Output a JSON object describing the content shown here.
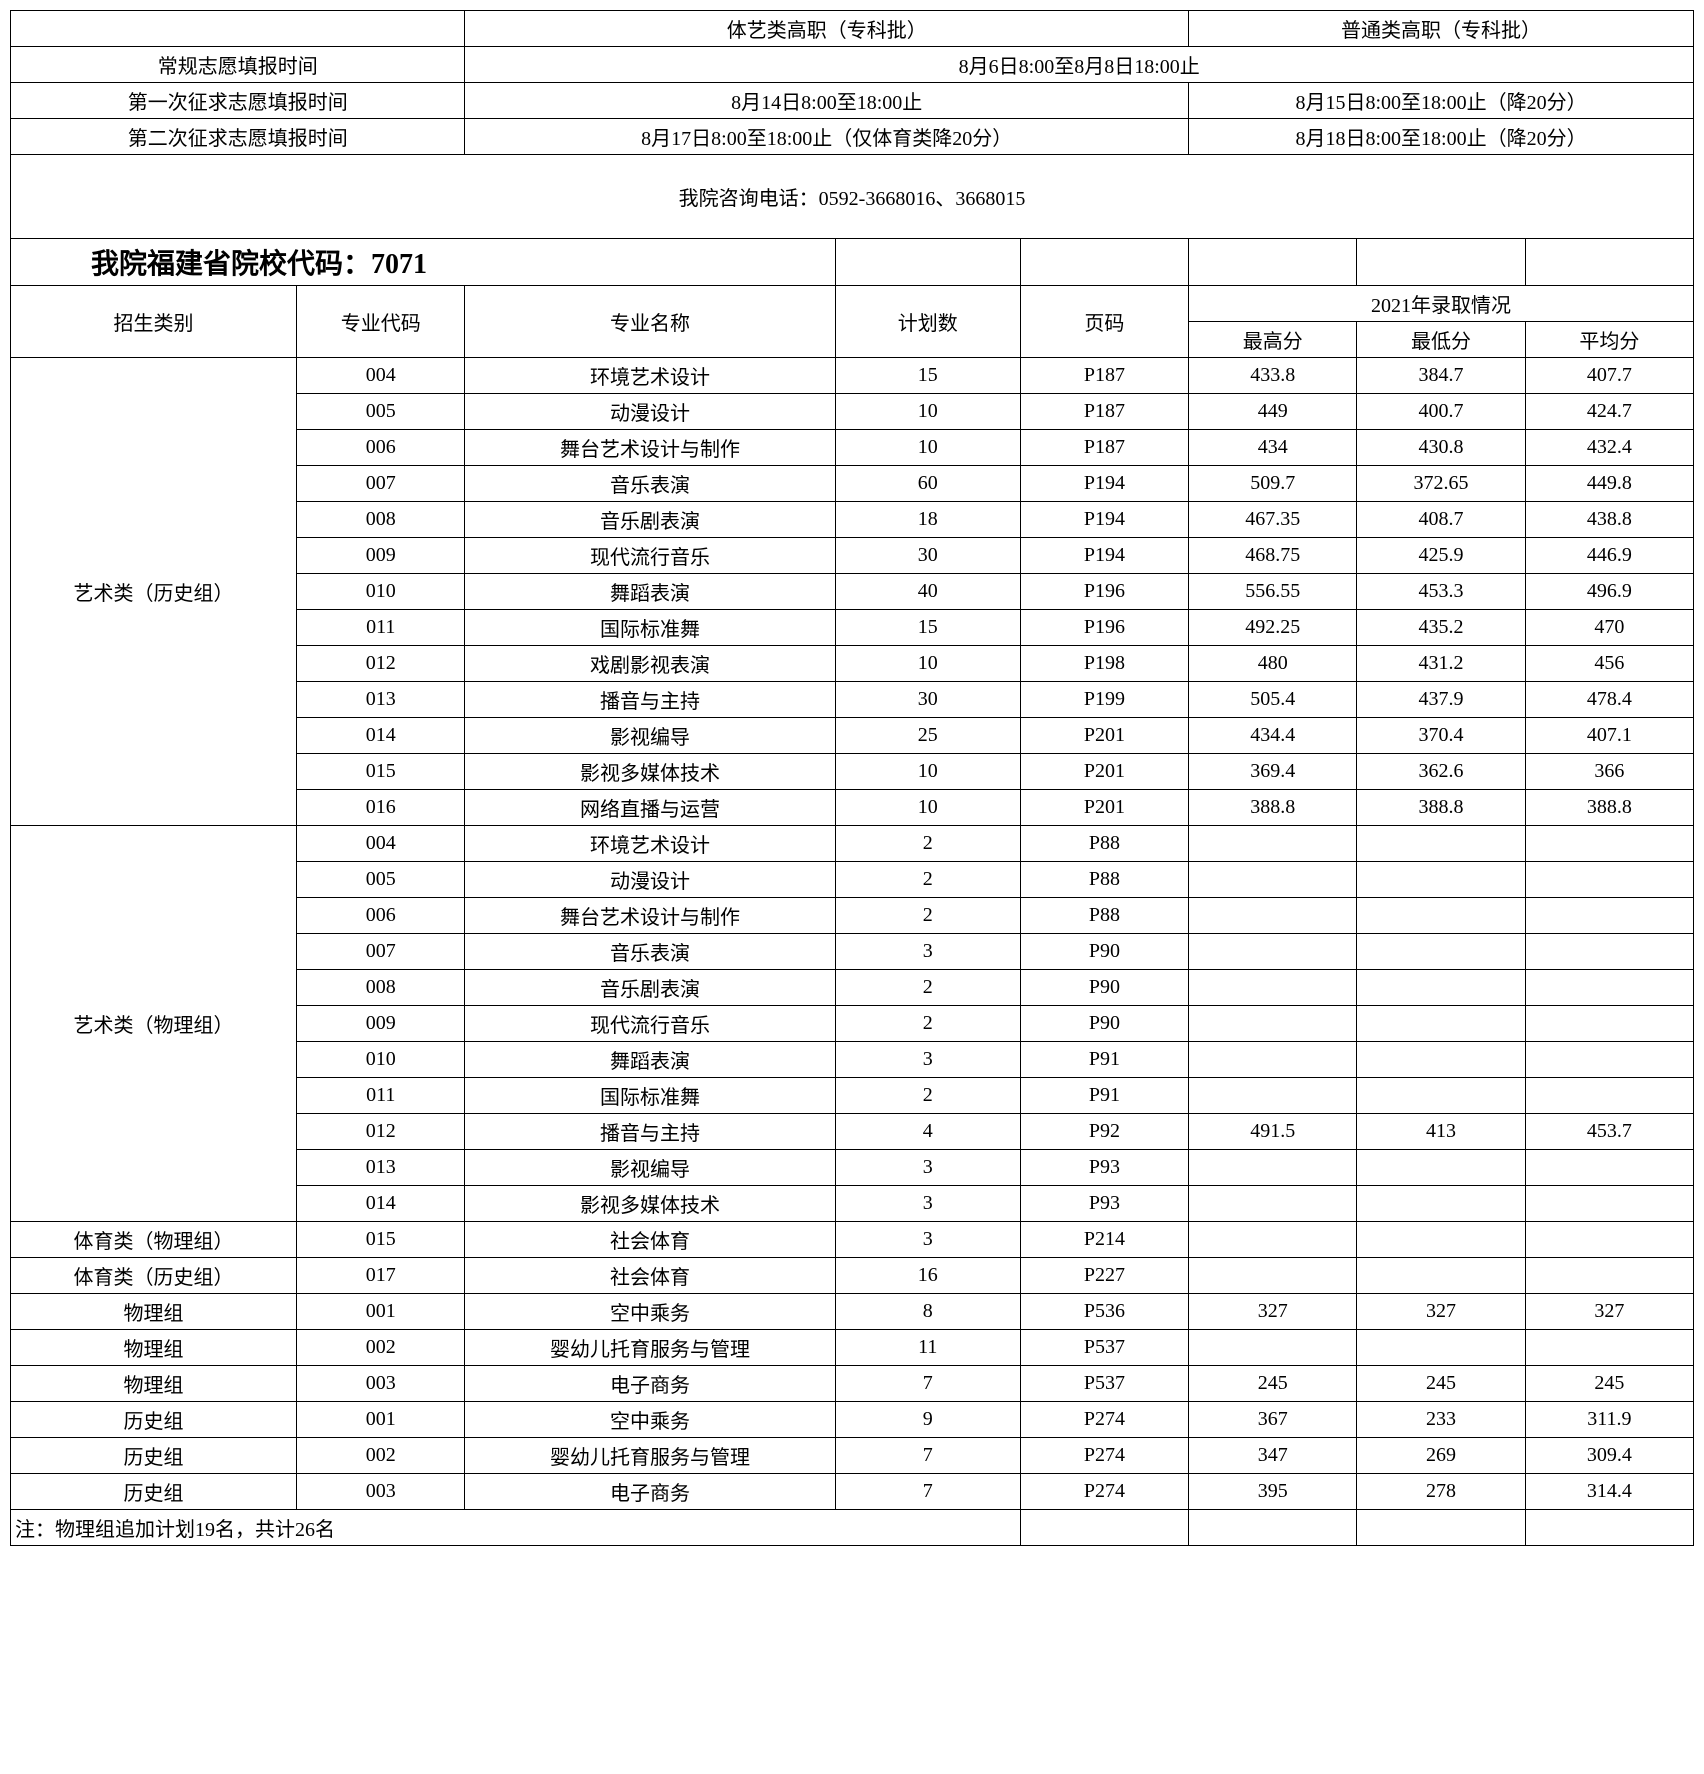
{
  "schedule": {
    "header_blank": "",
    "col1_header": "体艺类高职（专科批）",
    "col2_header": "普通类高职（专科批）",
    "rows": [
      {
        "label": "常规志愿填报时间",
        "merged": "8月6日8:00至8月8日18:00止"
      },
      {
        "label": "第一次征求志愿填报时间",
        "c1": "8月14日8:00至18:00止",
        "c2": "8月15日8:00至18:00止（降20分）"
      },
      {
        "label": "第二次征求志愿填报时间",
        "c1": "8月17日8:00至18:00止（仅体育类降20分）",
        "c2": "8月18日8:00至18:00止（降20分）"
      }
    ]
  },
  "contact": "我院咨询电话：0592-3668016、3668015",
  "school_code": "我院福建省院校代码：7071",
  "main_headers": {
    "category": "招生类别",
    "major_code": "专业代码",
    "major_name": "专业名称",
    "plan": "计划数",
    "page": "页码",
    "year_header": "2021年录取情况",
    "high": "最高分",
    "low": "最低分",
    "avg": "平均分"
  },
  "groups": [
    {
      "category": "艺术类（历史组）",
      "rows": [
        {
          "code": "004",
          "name": "环境艺术设计",
          "plan": "15",
          "page": "P187",
          "high": "433.8",
          "low": "384.7",
          "avg": "407.7"
        },
        {
          "code": "005",
          "name": "动漫设计",
          "plan": "10",
          "page": "P187",
          "high": "449",
          "low": "400.7",
          "avg": "424.7"
        },
        {
          "code": "006",
          "name": "舞台艺术设计与制作",
          "plan": "10",
          "page": "P187",
          "high": "434",
          "low": "430.8",
          "avg": "432.4"
        },
        {
          "code": "007",
          "name": "音乐表演",
          "plan": "60",
          "page": "P194",
          "high": "509.7",
          "low": "372.65",
          "avg": "449.8"
        },
        {
          "code": "008",
          "name": "音乐剧表演",
          "plan": "18",
          "page": "P194",
          "high": "467.35",
          "low": "408.7",
          "avg": "438.8"
        },
        {
          "code": "009",
          "name": "现代流行音乐",
          "plan": "30",
          "page": "P194",
          "high": "468.75",
          "low": "425.9",
          "avg": "446.9"
        },
        {
          "code": "010",
          "name": "舞蹈表演",
          "plan": "40",
          "page": "P196",
          "high": "556.55",
          "low": "453.3",
          "avg": "496.9"
        },
        {
          "code": "011",
          "name": "国际标准舞",
          "plan": "15",
          "page": "P196",
          "high": "492.25",
          "low": "435.2",
          "avg": "470"
        },
        {
          "code": "012",
          "name": "戏剧影视表演",
          "plan": "10",
          "page": "P198",
          "high": "480",
          "low": "431.2",
          "avg": "456"
        },
        {
          "code": "013",
          "name": "播音与主持",
          "plan": "30",
          "page": "P199",
          "high": "505.4",
          "low": "437.9",
          "avg": "478.4"
        },
        {
          "code": "014",
          "name": "影视编导",
          "plan": "25",
          "page": "P201",
          "high": "434.4",
          "low": "370.4",
          "avg": "407.1"
        },
        {
          "code": "015",
          "name": "影视多媒体技术",
          "plan": "10",
          "page": "P201",
          "high": "369.4",
          "low": "362.6",
          "avg": "366"
        },
        {
          "code": "016",
          "name": "网络直播与运营",
          "plan": "10",
          "page": "P201",
          "high": "388.8",
          "low": "388.8",
          "avg": "388.8"
        }
      ]
    },
    {
      "category": "艺术类（物理组）",
      "rows": [
        {
          "code": "004",
          "name": "环境艺术设计",
          "plan": "2",
          "page": "P88",
          "high": "",
          "low": "",
          "avg": ""
        },
        {
          "code": "005",
          "name": "动漫设计",
          "plan": "2",
          "page": "P88",
          "high": "",
          "low": "",
          "avg": ""
        },
        {
          "code": "006",
          "name": "舞台艺术设计与制作",
          "plan": "2",
          "page": "P88",
          "high": "",
          "low": "",
          "avg": ""
        },
        {
          "code": "007",
          "name": "音乐表演",
          "plan": "3",
          "page": "P90",
          "high": "",
          "low": "",
          "avg": ""
        },
        {
          "code": "008",
          "name": "音乐剧表演",
          "plan": "2",
          "page": "P90",
          "high": "",
          "low": "",
          "avg": ""
        },
        {
          "code": "009",
          "name": "现代流行音乐",
          "plan": "2",
          "page": "P90",
          "high": "",
          "low": "",
          "avg": ""
        },
        {
          "code": "010",
          "name": "舞蹈表演",
          "plan": "3",
          "page": "P91",
          "high": "",
          "low": "",
          "avg": ""
        },
        {
          "code": "011",
          "name": "国际标准舞",
          "plan": "2",
          "page": "P91",
          "high": "",
          "low": "",
          "avg": ""
        },
        {
          "code": "012",
          "name": "播音与主持",
          "plan": "4",
          "page": "P92",
          "high": "491.5",
          "low": "413",
          "avg": "453.7"
        },
        {
          "code": "013",
          "name": "影视编导",
          "plan": "3",
          "page": "P93",
          "high": "",
          "low": "",
          "avg": ""
        },
        {
          "code": "014",
          "name": "影视多媒体技术",
          "plan": "3",
          "page": "P93",
          "high": "",
          "low": "",
          "avg": ""
        }
      ]
    },
    {
      "category": "体育类（物理组）",
      "rows": [
        {
          "code": "015",
          "name": "社会体育",
          "plan": "3",
          "page": "P214",
          "high": "",
          "low": "",
          "avg": ""
        }
      ]
    },
    {
      "category": "体育类（历史组）",
      "rows": [
        {
          "code": "017",
          "name": "社会体育",
          "plan": "16",
          "page": "P227",
          "high": "",
          "low": "",
          "avg": ""
        }
      ]
    },
    {
      "category": "物理组",
      "rows": [
        {
          "code": "001",
          "name": "空中乘务",
          "plan": "8",
          "page": "P536",
          "high": "327",
          "low": "327",
          "avg": "327"
        }
      ]
    },
    {
      "category": "物理组",
      "rows": [
        {
          "code": "002",
          "name": "婴幼儿托育服务与管理",
          "plan": "11",
          "page": "P537",
          "high": "",
          "low": "",
          "avg": ""
        }
      ]
    },
    {
      "category": "物理组",
      "rows": [
        {
          "code": "003",
          "name": "电子商务",
          "plan": "7",
          "page": "P537",
          "high": "245",
          "low": "245",
          "avg": "245"
        }
      ]
    },
    {
      "category": "历史组",
      "rows": [
        {
          "code": "001",
          "name": "空中乘务",
          "plan": "9",
          "page": "P274",
          "high": "367",
          "low": "233",
          "avg": "311.9"
        }
      ]
    },
    {
      "category": "历史组",
      "rows": [
        {
          "code": "002",
          "name": "婴幼儿托育服务与管理",
          "plan": "7",
          "page": "P274",
          "high": "347",
          "low": "269",
          "avg": "309.4"
        }
      ]
    },
    {
      "category": "历史组",
      "rows": [
        {
          "code": "003",
          "name": "电子商务",
          "plan": "7",
          "page": "P274",
          "high": "395",
          "low": "278",
          "avg": "314.4"
        }
      ]
    }
  ],
  "note": "注：物理组追加计划19名，共计26名"
}
